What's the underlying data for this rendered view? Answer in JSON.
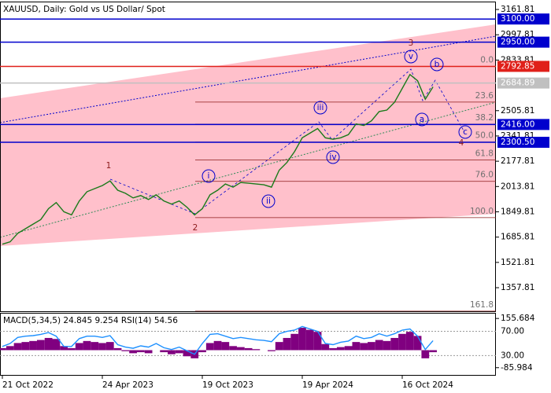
{
  "chart_data": [
    {
      "type": "line",
      "title": "XAUUSD, Daily:  Gold vs US Dollar/ Spot",
      "categories": [
        "21 Oct 2022",
        null,
        null,
        null,
        null,
        null,
        null,
        null,
        null,
        null,
        null,
        null,
        null,
        "24 Apr 2023",
        null,
        null,
        null,
        null,
        null,
        null,
        null,
        null,
        null,
        null,
        null,
        null,
        "19 Oct 2023",
        null,
        null,
        null,
        null,
        null,
        null,
        null,
        null,
        null,
        null,
        null,
        null,
        "19 Apr 2024",
        null,
        null,
        null,
        null,
        null,
        null,
        null,
        null,
        null,
        null,
        null,
        null,
        "16 Oct 2024",
        null,
        null,
        null,
        null
      ],
      "values": [
        1640,
        1655,
        1710,
        1740,
        1770,
        1800,
        1870,
        1910,
        1850,
        1830,
        1920,
        1980,
        2000,
        2020,
        2050,
        1990,
        1970,
        1940,
        1955,
        1930,
        1960,
        1920,
        1900,
        1920,
        1880,
        1830,
        1870,
        1960,
        1990,
        2030,
        2010,
        2040,
        2035,
        2030,
        2025,
        2010,
        2120,
        2170,
        2240,
        2330,
        2360,
        2390,
        2330,
        2320,
        2330,
        2350,
        2420,
        2410,
        2440,
        2500,
        2510,
        2560,
        2650,
        2740,
        2700,
        2580,
        2660
      ],
      "color": "#1a7a1a",
      "ylim": [
        1205,
        3208
      ],
      "yticks": [
        3161.81,
        2997.81,
        2833.81,
        2505.81,
        2341.81,
        2177.81,
        2013.81,
        1849.81,
        1685.81,
        1521.81,
        1357.81
      ],
      "levels": [
        {
          "value": 3100,
          "label": "3100.00",
          "color": "#0000cd"
        },
        {
          "value": 2950,
          "label": "2950.00",
          "color": "#0000cd"
        },
        {
          "value": 2792.85,
          "color": "#e0201a"
        },
        {
          "value": 2684.89,
          "color": "#c0c0c0"
        },
        {
          "value": 2416,
          "label": "2416.00",
          "color": "#0000cd"
        },
        {
          "value": 2300.5,
          "label": "2300.50",
          "color": "#0000cd"
        }
      ],
      "fibonacci": {
        "from": 2792.85,
        "to": 1812,
        "color": "#8b1a1a",
        "levels": [
          {
            "value": 0,
            "label": "0.0"
          },
          23.6,
          38.2,
          {
            "value": 50,
            "label": "50.0"
          },
          61.8,
          {
            "value": 76,
            "label": "76.0"
          },
          {
            "value": 100,
            "label": "100.0"
          },
          161.8
        ]
      },
      "wave_labels": [
        "1",
        "2",
        "3",
        "4",
        "i",
        "ii",
        "iii",
        "iv",
        "v",
        "a",
        "b",
        "c"
      ]
    },
    {
      "type": "macd",
      "title": "MACD(5,34,5) 24.845 9.254 RSI(14) 54.56",
      "ylim": [
        -121.6,
        179.5
      ],
      "yticks": [
        155.684,
        -85.984
      ],
      "y2lim": [
        -2,
        99.3
      ],
      "y2ticks": [
        {
          "value": 70,
          "label": "70.00"
        },
        {
          "value": 30,
          "label": "30.00"
        }
      ],
      "series": [
        {
          "color": "#800080",
          "values": [
            10,
            20,
            35,
            40,
            45,
            50,
            60,
            55,
            20,
            10,
            35,
            45,
            40,
            35,
            40,
            10,
            -5,
            -15,
            -10,
            -15,
            0,
            -10,
            -20,
            -15,
            -30,
            -40,
            -10,
            35,
            45,
            40,
            20,
            15,
            10,
            5,
            0,
            -5,
            40,
            60,
            80,
            110,
            100,
            90,
            30,
            10,
            15,
            20,
            40,
            35,
            40,
            50,
            45,
            60,
            80,
            90,
            70,
            -40,
            -10
          ]
        },
        {
          "color": "#1e90ff",
          "axis": "y2",
          "values": [
            45,
            50,
            60,
            62,
            63,
            65,
            68,
            62,
            45,
            45,
            58,
            62,
            62,
            60,
            63,
            48,
            44,
            42,
            46,
            44,
            50,
            43,
            40,
            44,
            38,
            32,
            50,
            65,
            66,
            62,
            58,
            60,
            58,
            56,
            55,
            53,
            66,
            70,
            72,
            78,
            74,
            70,
            50,
            48,
            52,
            54,
            62,
            58,
            60,
            66,
            62,
            66,
            72,
            74,
            62,
            40,
            54.56
          ]
        }
      ]
    }
  ]
}
